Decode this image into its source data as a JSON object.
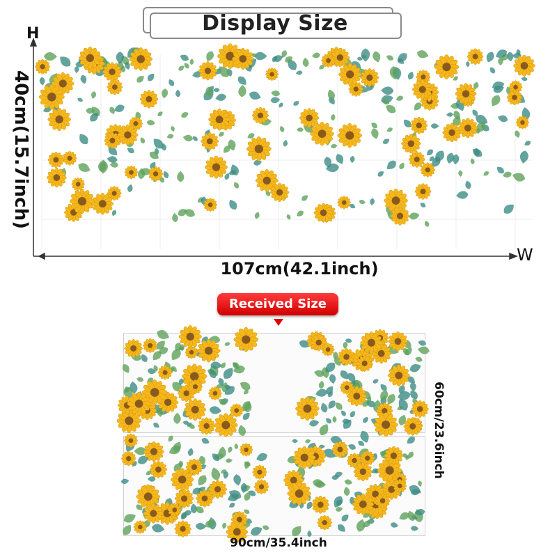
{
  "header": {
    "title": "Display Size"
  },
  "axes": {
    "h": "H",
    "w": "W"
  },
  "display": {
    "height_label": "40cm(15.7inch)",
    "width_label": "107cm(42.1inch)"
  },
  "received": {
    "badge": "Received Size",
    "height_label": "60cm/23.6inch",
    "width_label": "90cm/35.4inch"
  },
  "colors": {
    "accent_red": "#e00000",
    "sunflower_petal": "#f4b81c",
    "sunflower_center": "#8a5a1c",
    "leaf_green": "#5fa35b",
    "leaf_teal": "#3f8d86"
  }
}
